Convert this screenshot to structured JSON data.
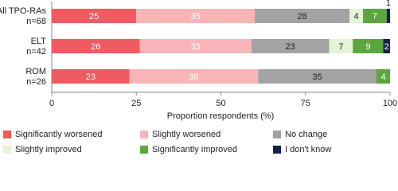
{
  "chart_data": {
    "type": "stacked-bar-horizontal",
    "categories": [
      "All TPO-RAs",
      "ELT",
      "ROM"
    ],
    "category_sublabels": [
      "n=68",
      "n=42",
      "n=26"
    ],
    "series": [
      {
        "name": "Significantly worsened",
        "color": "#ef5b60",
        "values": [
          25,
          26,
          23
        ]
      },
      {
        "name": "Slightly worsened",
        "color": "#f8b5b8",
        "values": [
          35,
          33,
          38
        ]
      },
      {
        "name": "No change",
        "color": "#a3a3a3",
        "values": [
          28,
          23,
          35
        ]
      },
      {
        "name": "Slightly improved",
        "color": "#e5f4d6",
        "values": [
          4,
          7,
          0
        ]
      },
      {
        "name": "Significantly improved",
        "color": "#5ba73f",
        "values": [
          7,
          9,
          4
        ]
      },
      {
        "name": "I don't know",
        "color": "#16204d",
        "values": [
          1,
          2,
          0
        ]
      }
    ],
    "xlim": [
      0,
      100
    ],
    "xticks": [
      0,
      25,
      50,
      75,
      100
    ],
    "xlabel": "Proportion respondents (%)"
  }
}
